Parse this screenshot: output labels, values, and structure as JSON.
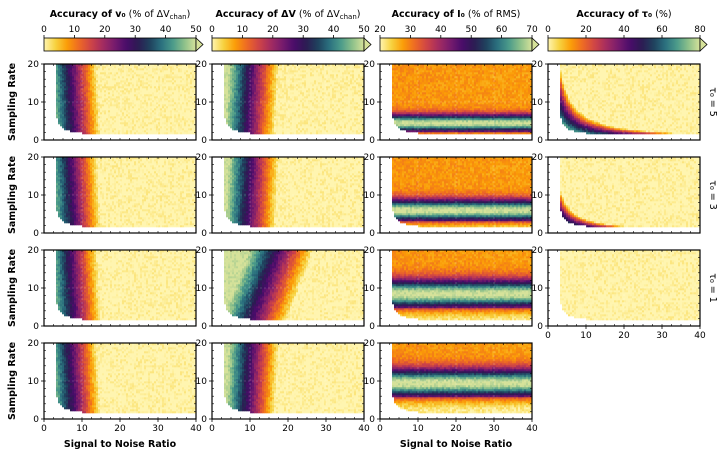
{
  "chart_data": {
    "type": "heatmap",
    "xlabel": "Signal to Noise Ratio",
    "ylabel": "Sampling Rate",
    "xlim": [
      0,
      40
    ],
    "ylim": [
      0,
      20
    ],
    "xticks": [
      "0",
      "10",
      "20",
      "30",
      "40"
    ],
    "yticks": [
      "0",
      "10",
      "20"
    ],
    "columns": [
      {
        "title_bold": "Accuracy of v₀",
        "title_rest": " (% of ΔV",
        "title_sub": "chan",
        "title_end": ")",
        "cbar_ticks": [
          "0",
          "10",
          "20",
          "30",
          "40",
          "50"
        ],
        "vmin": 0,
        "vmax": 50
      },
      {
        "title_bold": "Accuracy of ΔV",
        "title_rest": " (% of ΔV",
        "title_sub": "chan",
        "title_end": ")",
        "cbar_ticks": [
          "0",
          "10",
          "20",
          "30",
          "40",
          "50"
        ],
        "vmin": 0,
        "vmax": 50
      },
      {
        "title_bold": "Accuracy of I₀",
        "title_rest": " (% of RMS)",
        "title_sub": "",
        "title_end": "",
        "cbar_ticks": [
          "20",
          "30",
          "40",
          "50",
          "60",
          "70"
        ],
        "vmin": 20,
        "vmax": 70
      },
      {
        "title_bold": "Accuracy of τ₀",
        "title_rest": " (%)",
        "title_sub": "",
        "title_end": "",
        "cbar_ticks": [
          "0",
          "20",
          "40",
          "60",
          "80"
        ],
        "vmin": 0,
        "vmax": 80
      }
    ],
    "rows": [
      {
        "label": "τ₀ = 5"
      },
      {
        "label": "τ₀ = 3"
      },
      {
        "label": "τ₀ = 1"
      },
      {
        "label": ""
      }
    ],
    "colormap": "inferno-reversed-to-viridis",
    "colors": [
      "#fff5b0",
      "#f7d13d",
      "#fb9b06",
      "#ed6925",
      "#cf4446",
      "#a52c60",
      "#781c6d",
      "#4a0c6b",
      "#2d1a52",
      "#1f3f5c",
      "#2a6f7e",
      "#4a9a8a",
      "#8cc08a",
      "#d6e29a"
    ]
  }
}
